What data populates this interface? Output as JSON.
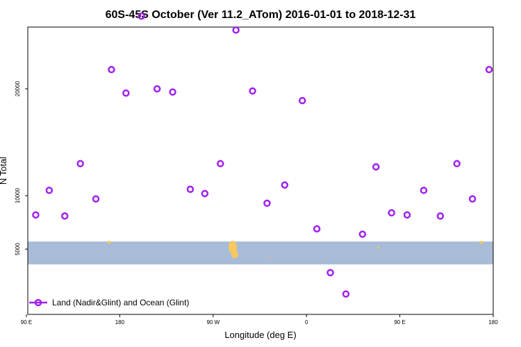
{
  "chart_data": {
    "type": "scatter",
    "title": "60S-45S October (Ver 11.2_ATom)   2016-01-01 to 2018-12-31",
    "xlabel": "Longitude (deg E)",
    "ylabel": "N Total",
    "x_ticks": [
      {
        "value": 90,
        "label": "90 E"
      },
      {
        "value": 180,
        "label": "180"
      },
      {
        "value": 270,
        "label": "90 W"
      },
      {
        "value": 360,
        "label": "0"
      },
      {
        "value": 450,
        "label": "90 E"
      },
      {
        "value": 540,
        "label": "180"
      }
    ],
    "y_ticks": [
      {
        "value": 5000,
        "label": "5000"
      },
      {
        "value": 10000,
        "label": "10000"
      },
      {
        "value": 20000,
        "label": "20000"
      }
    ],
    "xlim": [
      90,
      540
    ],
    "ylim": [
      0,
      28000
    ],
    "legend_position": "bottom-left",
    "series": [
      {
        "name": "Land (Nadir&Glint) and Ocean (Glint)",
        "color": "#a020f0",
        "marker": "open-circle",
        "x": [
          99,
          112,
          127,
          142,
          157,
          172,
          186,
          201,
          216,
          231,
          248,
          262,
          277,
          292,
          308,
          322,
          339,
          356,
          370,
          383,
          398,
          414,
          427,
          442,
          457,
          473,
          489,
          505,
          520,
          536
        ],
        "y": [
          8200,
          10500,
          8100,
          13000,
          9700,
          21800,
          19600,
          26800,
          20000,
          19700,
          10600,
          10200,
          13000,
          25500,
          19800,
          9300,
          11000,
          18900,
          6900,
          2800,
          800,
          6400,
          12700,
          8400,
          8200,
          10500,
          8100,
          13000,
          9700,
          21800
        ]
      }
    ]
  },
  "map_strip_colors": {
    "ocean": "#a8bcd8",
    "land": "#f6c85f"
  }
}
